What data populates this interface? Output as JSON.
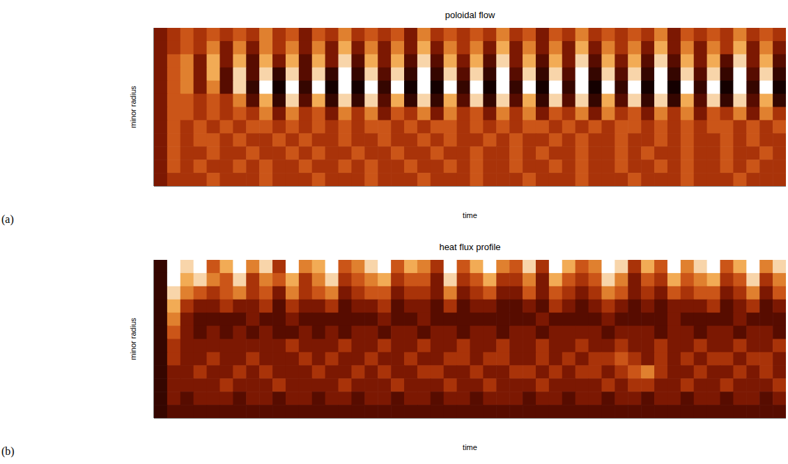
{
  "chart_data": [
    {
      "type": "heatmap",
      "title": "poloidal flow",
      "panel": "(a)",
      "x_label": "time",
      "y_label": "minor radius",
      "tick_labels": false,
      "zlim": [
        0,
        9
      ],
      "cells": [
        [
          3,
          4,
          5,
          4,
          5,
          4,
          5,
          4,
          6,
          4,
          5,
          3,
          5,
          4,
          6,
          4,
          5,
          4,
          5,
          3,
          6,
          4,
          5,
          4,
          5,
          4,
          6,
          4,
          5,
          3,
          5,
          4,
          6,
          4,
          5,
          4,
          5,
          4,
          6,
          3,
          5,
          4,
          5,
          4,
          6,
          4,
          5,
          4
        ],
        [
          3,
          4,
          5,
          4,
          6,
          3,
          6,
          3,
          6,
          4,
          6,
          3,
          6,
          3,
          7,
          3,
          6,
          3,
          6,
          3,
          7,
          3,
          6,
          4,
          6,
          3,
          7,
          3,
          6,
          3,
          6,
          3,
          7,
          3,
          6,
          4,
          6,
          3,
          7,
          3,
          6,
          3,
          6,
          4,
          7,
          3,
          6,
          3
        ],
        [
          3,
          5,
          6,
          3,
          7,
          3,
          7,
          2,
          7,
          3,
          7,
          2,
          7,
          3,
          8,
          2,
          7,
          3,
          7,
          2,
          8,
          2,
          7,
          3,
          7,
          2,
          8,
          3,
          7,
          2,
          7,
          3,
          8,
          2,
          7,
          3,
          7,
          2,
          8,
          2,
          7,
          3,
          7,
          2,
          8,
          3,
          7,
          2
        ],
        [
          3,
          5,
          6,
          3,
          7,
          2,
          8,
          2,
          8,
          1,
          8,
          2,
          8,
          1,
          9,
          1,
          8,
          2,
          8,
          1,
          9,
          1,
          8,
          2,
          8,
          1,
          9,
          2,
          8,
          1,
          8,
          2,
          9,
          1,
          8,
          2,
          8,
          1,
          9,
          1,
          8,
          2,
          8,
          1,
          9,
          2,
          8,
          1
        ],
        [
          3,
          5,
          6,
          3,
          6,
          2,
          8,
          1,
          9,
          0,
          9,
          1,
          9,
          0,
          9,
          0,
          9,
          1,
          9,
          0,
          9,
          0,
          9,
          1,
          9,
          0,
          9,
          1,
          9,
          0,
          9,
          1,
          9,
          0,
          9,
          1,
          9,
          0,
          9,
          0,
          9,
          1,
          9,
          0,
          9,
          1,
          9,
          0
        ],
        [
          3,
          5,
          5,
          4,
          5,
          4,
          6,
          2,
          7,
          1,
          8,
          2,
          7,
          1,
          8,
          1,
          8,
          2,
          7,
          1,
          8,
          1,
          7,
          2,
          8,
          1,
          8,
          2,
          7,
          1,
          8,
          2,
          8,
          1,
          7,
          2,
          8,
          1,
          8,
          1,
          7,
          2,
          8,
          1,
          8,
          2,
          7,
          1
        ],
        [
          3,
          5,
          5,
          4,
          5,
          4,
          5,
          4,
          6,
          3,
          6,
          4,
          5,
          3,
          6,
          4,
          6,
          3,
          5,
          4,
          6,
          3,
          6,
          4,
          5,
          3,
          6,
          4,
          6,
          3,
          5,
          4,
          6,
          3,
          6,
          4,
          5,
          3,
          6,
          4,
          6,
          3,
          5,
          4,
          6,
          3,
          6,
          4
        ],
        [
          3,
          5,
          4,
          5,
          4,
          5,
          4,
          5,
          5,
          4,
          5,
          4,
          5,
          4,
          5,
          4,
          5,
          5,
          4,
          5,
          4,
          5,
          5,
          4,
          5,
          4,
          5,
          4,
          5,
          5,
          4,
          5,
          4,
          5,
          4,
          5,
          5,
          4,
          5,
          4,
          5,
          4,
          5,
          5,
          4,
          5,
          4,
          5
        ],
        [
          3,
          5,
          4,
          5,
          5,
          4,
          5,
          4,
          4,
          5,
          4,
          5,
          4,
          4,
          5,
          4,
          4,
          5,
          4,
          4,
          5,
          4,
          5,
          4,
          4,
          5,
          4,
          5,
          4,
          4,
          5,
          4,
          5,
          4,
          4,
          5,
          4,
          4,
          5,
          4,
          5,
          4,
          4,
          5,
          4,
          5,
          4,
          4
        ],
        [
          3,
          5,
          4,
          4,
          5,
          4,
          4,
          5,
          4,
          4,
          5,
          4,
          5,
          4,
          4,
          5,
          4,
          4,
          5,
          4,
          4,
          5,
          4,
          4,
          5,
          4,
          4,
          5,
          4,
          5,
          4,
          4,
          5,
          4,
          4,
          5,
          4,
          5,
          4,
          4,
          5,
          4,
          4,
          5,
          4,
          4,
          5,
          4
        ],
        [
          3,
          5,
          4,
          5,
          4,
          4,
          5,
          4,
          5,
          4,
          4,
          5,
          4,
          4,
          5,
          4,
          5,
          4,
          4,
          5,
          4,
          4,
          5,
          4,
          5,
          4,
          4,
          5,
          4,
          4,
          5,
          4,
          5,
          4,
          4,
          5,
          4,
          4,
          5,
          4,
          5,
          4,
          4,
          5,
          4,
          5,
          4,
          4
        ],
        [
          3,
          4,
          4,
          4,
          5,
          4,
          4,
          4,
          5,
          4,
          4,
          4,
          5,
          4,
          4,
          4,
          5,
          4,
          4,
          4,
          5,
          4,
          4,
          4,
          5,
          4,
          4,
          4,
          5,
          4,
          4,
          4,
          5,
          4,
          4,
          4,
          5,
          4,
          4,
          4,
          5,
          4,
          4,
          4,
          5,
          4,
          4,
          4
        ]
      ]
    },
    {
      "type": "heatmap",
      "title": "heat flux profile",
      "panel": "(b)",
      "x_label": "time",
      "y_label": "minor radius",
      "tick_labels": false,
      "zlim": [
        0,
        9
      ],
      "cells": [
        [
          1,
          9,
          8,
          9,
          5,
          7,
          9,
          6,
          8,
          4,
          9,
          6,
          7,
          9,
          5,
          6,
          8,
          9,
          5,
          7,
          6,
          4,
          9,
          5,
          7,
          9,
          6,
          5,
          8,
          4,
          9,
          7,
          5,
          6,
          9,
          8,
          4,
          7,
          5,
          9,
          6,
          8,
          9,
          5,
          7,
          9,
          6,
          8
        ],
        [
          1,
          9,
          7,
          8,
          6,
          5,
          8,
          4,
          6,
          5,
          7,
          4,
          6,
          8,
          4,
          5,
          6,
          7,
          4,
          5,
          5,
          3,
          8,
          4,
          5,
          7,
          4,
          4,
          6,
          3,
          7,
          5,
          4,
          5,
          8,
          6,
          3,
          5,
          4,
          7,
          5,
          6,
          7,
          4,
          5,
          8,
          4,
          6
        ],
        [
          1,
          8,
          6,
          5,
          4,
          5,
          6,
          4,
          5,
          3,
          6,
          4,
          5,
          6,
          3,
          4,
          5,
          5,
          3,
          4,
          4,
          3,
          6,
          3,
          4,
          5,
          3,
          3,
          5,
          3,
          5,
          4,
          3,
          4,
          6,
          5,
          3,
          4,
          3,
          5,
          4,
          5,
          5,
          3,
          4,
          6,
          3,
          5
        ],
        [
          1,
          7,
          4,
          3,
          3,
          4,
          3,
          3,
          4,
          2,
          4,
          3,
          3,
          4,
          2,
          3,
          3,
          4,
          2,
          3,
          3,
          2,
          4,
          2,
          3,
          3,
          2,
          2,
          3,
          2,
          4,
          3,
          2,
          3,
          4,
          3,
          2,
          3,
          2,
          3,
          3,
          3,
          4,
          2,
          3,
          4,
          2,
          3
        ],
        [
          1,
          6,
          3,
          2,
          2,
          2,
          2,
          3,
          2,
          2,
          3,
          2,
          2,
          2,
          2,
          2,
          2,
          3,
          2,
          2,
          3,
          2,
          2,
          2,
          2,
          2,
          2,
          2,
          2,
          3,
          2,
          2,
          2,
          2,
          3,
          2,
          2,
          2,
          2,
          3,
          2,
          2,
          2,
          2,
          3,
          2,
          2,
          2
        ],
        [
          1,
          5,
          3,
          2,
          3,
          2,
          3,
          2,
          3,
          2,
          2,
          3,
          2,
          3,
          2,
          3,
          3,
          2,
          3,
          3,
          2,
          3,
          3,
          2,
          3,
          3,
          2,
          3,
          3,
          2,
          3,
          3,
          3,
          3,
          2,
          3,
          3,
          3,
          2,
          3,
          3,
          2,
          3,
          3,
          2,
          3,
          3,
          2
        ],
        [
          1,
          4,
          3,
          3,
          3,
          3,
          3,
          3,
          3,
          3,
          4,
          3,
          3,
          3,
          4,
          3,
          3,
          4,
          3,
          3,
          4,
          3,
          3,
          4,
          3,
          3,
          4,
          3,
          3,
          4,
          3,
          3,
          4,
          3,
          3,
          4,
          3,
          3,
          4,
          3,
          3,
          4,
          3,
          3,
          4,
          3,
          3,
          4
        ],
        [
          1,
          4,
          3,
          3,
          4,
          3,
          3,
          4,
          3,
          3,
          3,
          4,
          3,
          4,
          3,
          3,
          4,
          3,
          3,
          4,
          3,
          3,
          4,
          4,
          3,
          4,
          4,
          3,
          3,
          4,
          3,
          4,
          3,
          4,
          4,
          5,
          4,
          3,
          4,
          3,
          4,
          3,
          4,
          4,
          3,
          4,
          4,
          3
        ],
        [
          1,
          3,
          3,
          4,
          3,
          3,
          4,
          3,
          4,
          3,
          3,
          3,
          4,
          3,
          3,
          4,
          3,
          4,
          3,
          3,
          4,
          4,
          3,
          3,
          4,
          3,
          3,
          4,
          4,
          3,
          4,
          3,
          4,
          4,
          3,
          4,
          5,
          6,
          4,
          3,
          3,
          4,
          3,
          3,
          4,
          3,
          4,
          3
        ],
        [
          1,
          3,
          3,
          3,
          3,
          4,
          3,
          3,
          3,
          4,
          3,
          3,
          3,
          3,
          4,
          3,
          3,
          3,
          4,
          3,
          3,
          3,
          4,
          3,
          3,
          4,
          3,
          3,
          3,
          4,
          3,
          3,
          3,
          3,
          4,
          3,
          4,
          4,
          3,
          3,
          4,
          3,
          3,
          4,
          3,
          3,
          3,
          4
        ],
        [
          1,
          3,
          2,
          3,
          3,
          3,
          2,
          3,
          3,
          2,
          3,
          3,
          2,
          3,
          3,
          2,
          3,
          3,
          2,
          3,
          3,
          2,
          3,
          3,
          2,
          3,
          3,
          3,
          2,
          3,
          3,
          2,
          3,
          3,
          2,
          3,
          3,
          2,
          3,
          3,
          2,
          3,
          3,
          2,
          3,
          3,
          2,
          3
        ],
        [
          1,
          2,
          2,
          2,
          2,
          2,
          2,
          2,
          2,
          2,
          2,
          2,
          2,
          2,
          2,
          2,
          2,
          2,
          2,
          2,
          2,
          2,
          2,
          2,
          2,
          2,
          2,
          2,
          2,
          2,
          2,
          2,
          2,
          2,
          2,
          2,
          2,
          2,
          2,
          2,
          2,
          2,
          2,
          2,
          2,
          2,
          2,
          2
        ]
      ]
    }
  ]
}
